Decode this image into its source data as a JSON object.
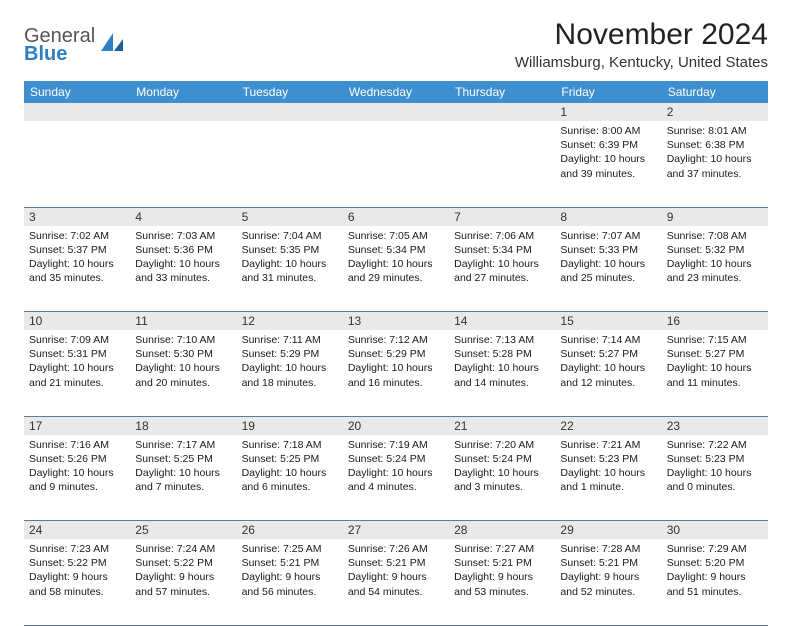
{
  "logo": {
    "text_top": "General",
    "text_bottom": "Blue"
  },
  "title": "November 2024",
  "location": "Williamsburg, Kentucky, United States",
  "colors": {
    "header_bg": "#3e8fcf",
    "header_text": "#ffffff",
    "daynum_bg": "#e9e9e9",
    "rule": "#5a7a9e",
    "logo_blue": "#2f7fc4"
  },
  "weekdays": [
    "Sunday",
    "Monday",
    "Tuesday",
    "Wednesday",
    "Thursday",
    "Friday",
    "Saturday"
  ],
  "weeks": [
    {
      "nums": [
        "",
        "",
        "",
        "",
        "",
        "1",
        "2"
      ],
      "cells": [
        {
          "sunrise": "",
          "sunset": "",
          "daylight": ""
        },
        {
          "sunrise": "",
          "sunset": "",
          "daylight": ""
        },
        {
          "sunrise": "",
          "sunset": "",
          "daylight": ""
        },
        {
          "sunrise": "",
          "sunset": "",
          "daylight": ""
        },
        {
          "sunrise": "",
          "sunset": "",
          "daylight": ""
        },
        {
          "sunrise": "Sunrise: 8:00 AM",
          "sunset": "Sunset: 6:39 PM",
          "daylight": "Daylight: 10 hours and 39 minutes."
        },
        {
          "sunrise": "Sunrise: 8:01 AM",
          "sunset": "Sunset: 6:38 PM",
          "daylight": "Daylight: 10 hours and 37 minutes."
        }
      ]
    },
    {
      "nums": [
        "3",
        "4",
        "5",
        "6",
        "7",
        "8",
        "9"
      ],
      "cells": [
        {
          "sunrise": "Sunrise: 7:02 AM",
          "sunset": "Sunset: 5:37 PM",
          "daylight": "Daylight: 10 hours and 35 minutes."
        },
        {
          "sunrise": "Sunrise: 7:03 AM",
          "sunset": "Sunset: 5:36 PM",
          "daylight": "Daylight: 10 hours and 33 minutes."
        },
        {
          "sunrise": "Sunrise: 7:04 AM",
          "sunset": "Sunset: 5:35 PM",
          "daylight": "Daylight: 10 hours and 31 minutes."
        },
        {
          "sunrise": "Sunrise: 7:05 AM",
          "sunset": "Sunset: 5:34 PM",
          "daylight": "Daylight: 10 hours and 29 minutes."
        },
        {
          "sunrise": "Sunrise: 7:06 AM",
          "sunset": "Sunset: 5:34 PM",
          "daylight": "Daylight: 10 hours and 27 minutes."
        },
        {
          "sunrise": "Sunrise: 7:07 AM",
          "sunset": "Sunset: 5:33 PM",
          "daylight": "Daylight: 10 hours and 25 minutes."
        },
        {
          "sunrise": "Sunrise: 7:08 AM",
          "sunset": "Sunset: 5:32 PM",
          "daylight": "Daylight: 10 hours and 23 minutes."
        }
      ]
    },
    {
      "nums": [
        "10",
        "11",
        "12",
        "13",
        "14",
        "15",
        "16"
      ],
      "cells": [
        {
          "sunrise": "Sunrise: 7:09 AM",
          "sunset": "Sunset: 5:31 PM",
          "daylight": "Daylight: 10 hours and 21 minutes."
        },
        {
          "sunrise": "Sunrise: 7:10 AM",
          "sunset": "Sunset: 5:30 PM",
          "daylight": "Daylight: 10 hours and 20 minutes."
        },
        {
          "sunrise": "Sunrise: 7:11 AM",
          "sunset": "Sunset: 5:29 PM",
          "daylight": "Daylight: 10 hours and 18 minutes."
        },
        {
          "sunrise": "Sunrise: 7:12 AM",
          "sunset": "Sunset: 5:29 PM",
          "daylight": "Daylight: 10 hours and 16 minutes."
        },
        {
          "sunrise": "Sunrise: 7:13 AM",
          "sunset": "Sunset: 5:28 PM",
          "daylight": "Daylight: 10 hours and 14 minutes."
        },
        {
          "sunrise": "Sunrise: 7:14 AM",
          "sunset": "Sunset: 5:27 PM",
          "daylight": "Daylight: 10 hours and 12 minutes."
        },
        {
          "sunrise": "Sunrise: 7:15 AM",
          "sunset": "Sunset: 5:27 PM",
          "daylight": "Daylight: 10 hours and 11 minutes."
        }
      ]
    },
    {
      "nums": [
        "17",
        "18",
        "19",
        "20",
        "21",
        "22",
        "23"
      ],
      "cells": [
        {
          "sunrise": "Sunrise: 7:16 AM",
          "sunset": "Sunset: 5:26 PM",
          "daylight": "Daylight: 10 hours and 9 minutes."
        },
        {
          "sunrise": "Sunrise: 7:17 AM",
          "sunset": "Sunset: 5:25 PM",
          "daylight": "Daylight: 10 hours and 7 minutes."
        },
        {
          "sunrise": "Sunrise: 7:18 AM",
          "sunset": "Sunset: 5:25 PM",
          "daylight": "Daylight: 10 hours and 6 minutes."
        },
        {
          "sunrise": "Sunrise: 7:19 AM",
          "sunset": "Sunset: 5:24 PM",
          "daylight": "Daylight: 10 hours and 4 minutes."
        },
        {
          "sunrise": "Sunrise: 7:20 AM",
          "sunset": "Sunset: 5:24 PM",
          "daylight": "Daylight: 10 hours and 3 minutes."
        },
        {
          "sunrise": "Sunrise: 7:21 AM",
          "sunset": "Sunset: 5:23 PM",
          "daylight": "Daylight: 10 hours and 1 minute."
        },
        {
          "sunrise": "Sunrise: 7:22 AM",
          "sunset": "Sunset: 5:23 PM",
          "daylight": "Daylight: 10 hours and 0 minutes."
        }
      ]
    },
    {
      "nums": [
        "24",
        "25",
        "26",
        "27",
        "28",
        "29",
        "30"
      ],
      "cells": [
        {
          "sunrise": "Sunrise: 7:23 AM",
          "sunset": "Sunset: 5:22 PM",
          "daylight": "Daylight: 9 hours and 58 minutes."
        },
        {
          "sunrise": "Sunrise: 7:24 AM",
          "sunset": "Sunset: 5:22 PM",
          "daylight": "Daylight: 9 hours and 57 minutes."
        },
        {
          "sunrise": "Sunrise: 7:25 AM",
          "sunset": "Sunset: 5:21 PM",
          "daylight": "Daylight: 9 hours and 56 minutes."
        },
        {
          "sunrise": "Sunrise: 7:26 AM",
          "sunset": "Sunset: 5:21 PM",
          "daylight": "Daylight: 9 hours and 54 minutes."
        },
        {
          "sunrise": "Sunrise: 7:27 AM",
          "sunset": "Sunset: 5:21 PM",
          "daylight": "Daylight: 9 hours and 53 minutes."
        },
        {
          "sunrise": "Sunrise: 7:28 AM",
          "sunset": "Sunset: 5:21 PM",
          "daylight": "Daylight: 9 hours and 52 minutes."
        },
        {
          "sunrise": "Sunrise: 7:29 AM",
          "sunset": "Sunset: 5:20 PM",
          "daylight": "Daylight: 9 hours and 51 minutes."
        }
      ]
    }
  ]
}
